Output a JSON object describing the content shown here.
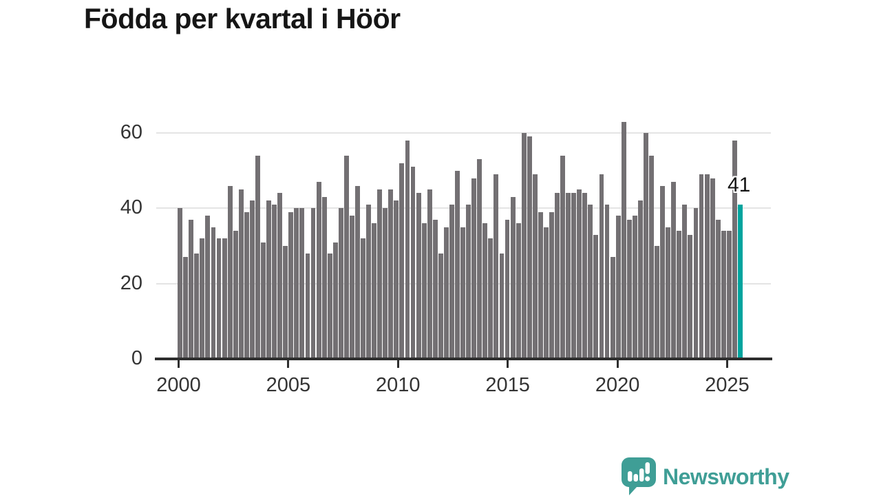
{
  "title": "Födda per kvartal i Höör",
  "annotation": {
    "last_value_label": "41"
  },
  "branding": {
    "name": "Newsworthy",
    "icon": "newsworthy-speech-bubble-chart-icon",
    "color": "#3f9e96"
  },
  "colors": {
    "bar": "#737073",
    "highlight": "#00a49e",
    "axis": "#2e2e2e",
    "grid": "#e4e4e4",
    "tick_text": "#343434",
    "title_text": "#161616"
  },
  "chart_data": {
    "type": "bar",
    "title": "Födda per kvartal i Höör",
    "xlabel": "",
    "ylabel": "",
    "grid": "horizontal",
    "legend": "none",
    "yticks": [
      0,
      20,
      40,
      60
    ],
    "ylim": [
      0,
      65
    ],
    "xticks": [
      "2000",
      "2005",
      "2010",
      "2015",
      "2020",
      "2025"
    ],
    "x": [
      "2000Q1",
      "2000Q2",
      "2000Q3",
      "2000Q4",
      "2001Q1",
      "2001Q2",
      "2001Q3",
      "2001Q4",
      "2002Q1",
      "2002Q2",
      "2002Q3",
      "2002Q4",
      "2003Q1",
      "2003Q2",
      "2003Q3",
      "2003Q4",
      "2004Q1",
      "2004Q2",
      "2004Q3",
      "2004Q4",
      "2005Q1",
      "2005Q2",
      "2005Q3",
      "2005Q4",
      "2006Q1",
      "2006Q2",
      "2006Q3",
      "2006Q4",
      "2007Q1",
      "2007Q2",
      "2007Q3",
      "2007Q4",
      "2008Q1",
      "2008Q2",
      "2008Q3",
      "2008Q4",
      "2009Q1",
      "2009Q2",
      "2009Q3",
      "2009Q4",
      "2010Q1",
      "2010Q2",
      "2010Q3",
      "2010Q4",
      "2011Q1",
      "2011Q2",
      "2011Q3",
      "2011Q4",
      "2012Q1",
      "2012Q2",
      "2012Q3",
      "2012Q4",
      "2013Q1",
      "2013Q2",
      "2013Q3",
      "2013Q4",
      "2014Q1",
      "2014Q2",
      "2014Q3",
      "2014Q4",
      "2015Q1",
      "2015Q2",
      "2015Q3",
      "2015Q4",
      "2016Q1",
      "2016Q2",
      "2016Q3",
      "2016Q4",
      "2017Q1",
      "2017Q2",
      "2017Q3",
      "2017Q4",
      "2018Q1",
      "2018Q2",
      "2018Q3",
      "2018Q4",
      "2019Q1",
      "2019Q2",
      "2019Q3",
      "2019Q4",
      "2020Q1",
      "2020Q2",
      "2020Q3",
      "2020Q4",
      "2021Q1",
      "2021Q2",
      "2021Q3",
      "2021Q4",
      "2022Q1",
      "2022Q2",
      "2022Q3",
      "2022Q4",
      "2023Q1",
      "2023Q2",
      "2023Q3",
      "2023Q4",
      "2024Q1",
      "2024Q2",
      "2024Q3",
      "2024Q4",
      "2025Q1",
      "2025Q2"
    ],
    "values": [
      40,
      27,
      37,
      28,
      32,
      38,
      35,
      32,
      32,
      46,
      34,
      45,
      39,
      42,
      54,
      31,
      42,
      41,
      44,
      30,
      39,
      40,
      40,
      28,
      40,
      47,
      43,
      28,
      31,
      40,
      54,
      38,
      46,
      32,
      41,
      36,
      45,
      40,
      45,
      42,
      52,
      58,
      51,
      44,
      36,
      45,
      37,
      28,
      35,
      41,
      50,
      35,
      41,
      48,
      53,
      36,
      32,
      49,
      28,
      37,
      43,
      36,
      60,
      59,
      49,
      39,
      35,
      39,
      44,
      54,
      44,
      44,
      45,
      44,
      41,
      33,
      49,
      41,
      27,
      38,
      63,
      37,
      38,
      42,
      60,
      54,
      30,
      46,
      35,
      47,
      34,
      41,
      33,
      40,
      49,
      49,
      48,
      37,
      34,
      34,
      58,
      41
    ],
    "highlight_index": 101,
    "highlight_value_label": "41"
  }
}
